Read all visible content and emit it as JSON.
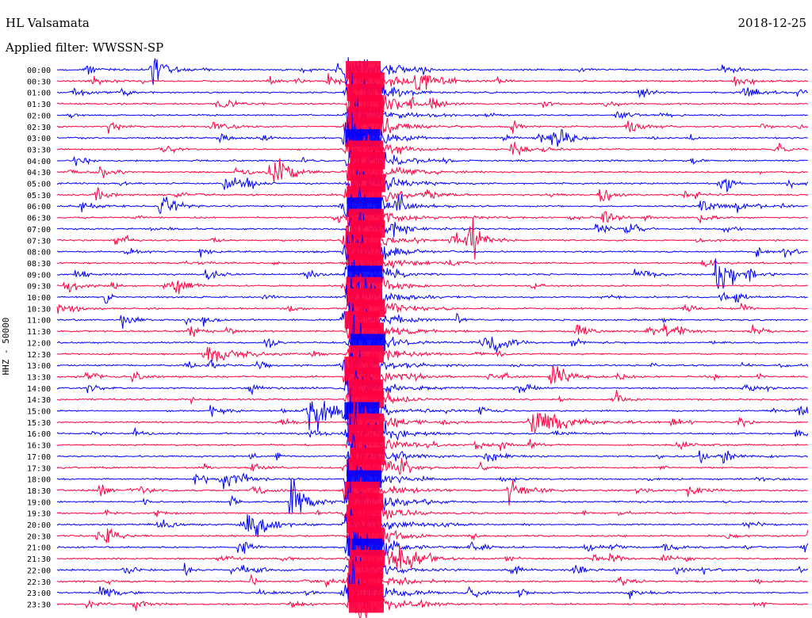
{
  "header": {
    "station": "HL Valsamata",
    "filter": "Applied filter: WWSSN-SP",
    "date": "2018-12-25",
    "channel": "HHZ - 50000"
  },
  "colors": {
    "trace_a": "#0000ff",
    "trace_b": "#ff0040",
    "background": "#ffffff",
    "text": "#000000"
  },
  "chart_data": {
    "type": "line",
    "title": "HL Valsamata",
    "subtitle": "Applied filter: WWSSN-SP",
    "ylabel": "HHZ - 50000",
    "row_labels": [
      "00:00",
      "00:30",
      "01:00",
      "01:30",
      "02:00",
      "02:30",
      "03:00",
      "03:30",
      "04:00",
      "04:30",
      "05:00",
      "05:30",
      "06:00",
      "06:30",
      "07:00",
      "07:30",
      "08:00",
      "08:30",
      "09:00",
      "09:30",
      "10:00",
      "10:30",
      "11:00",
      "11:30",
      "12:00",
      "12:30",
      "13:00",
      "13:30",
      "14:00",
      "14:30",
      "15:00",
      "15:30",
      "16:00",
      "16:30",
      "17:00",
      "17:30",
      "18:00",
      "18:30",
      "19:00",
      "19:30",
      "20:00",
      "20:30",
      "21:00",
      "21:30",
      "22:00",
      "22:30",
      "23:00",
      "23:30"
    ],
    "row_minutes": 30,
    "series": [
      {
        "color": "trace_a",
        "rows": "even"
      },
      {
        "color": "trace_b",
        "rows": "odd"
      }
    ],
    "grid": false
  }
}
